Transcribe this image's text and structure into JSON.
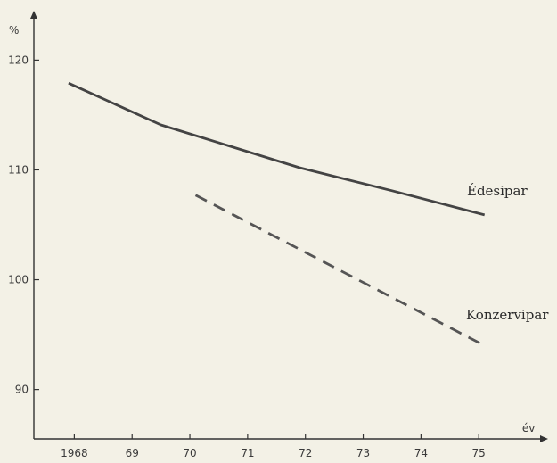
{
  "chart_data": {
    "type": "line",
    "y_unit_label": "%",
    "x_unit_label": "év",
    "x_ticks": [
      {
        "value": 1968,
        "label": "1968"
      },
      {
        "value": 1969,
        "label": "69"
      },
      {
        "value": 1970,
        "label": "70"
      },
      {
        "value": 1971,
        "label": "71"
      },
      {
        "value": 1972,
        "label": "72"
      },
      {
        "value": 1973,
        "label": "73"
      },
      {
        "value": 1974,
        "label": "74"
      },
      {
        "value": 1975,
        "label": "75"
      }
    ],
    "y_ticks": [
      90,
      100,
      110,
      120
    ],
    "xlim": [
      1967.3,
      1976.2
    ],
    "ylim": [
      85.5,
      124.5
    ],
    "grid": false,
    "series": [
      {
        "name": "Édesipar",
        "style": "solid",
        "color": "#444444",
        "points": [
          [
            1967.9,
            117.9
          ],
          [
            1969.5,
            114.1
          ],
          [
            1971.9,
            110.2
          ],
          [
            1973.5,
            108.1
          ],
          [
            1975.1,
            105.9
          ]
        ]
      },
      {
        "name": "Konzervipar",
        "style": "dashed",
        "color": "#555555",
        "points": [
          [
            1970.1,
            107.7
          ],
          [
            1975.1,
            94.0
          ]
        ]
      }
    ]
  }
}
